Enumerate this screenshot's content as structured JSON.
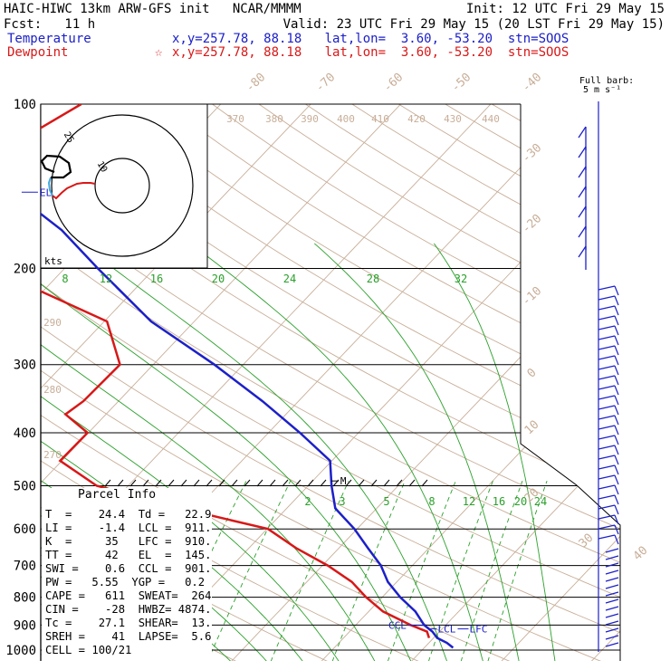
{
  "header": {
    "title": "HAIC-HIWC 13km ARW-GFS init   NCAR/MMMM",
    "init": "Init: 12 UTC Fri 29 May 15",
    "fcst": "Fcst:   11 h",
    "valid": "Valid: 23 UTC Fri 29 May 15 (20 LST Fri 29 May 15)",
    "temperature_label": "Temperature",
    "temperature_info": "x,y=257.78, 88.18   lat,lon=  3.60, -53.20  stn=SOOS",
    "dewpoint_label": "Dewpoint",
    "dewpoint_info": "x,y=257.78, 88.18   lat,lon=  3.60, -53.20  stn=SOOS",
    "dewpoint_marker": "☆"
  },
  "colors": {
    "temperature": "#1c20c8",
    "dewpoint": "#d81818",
    "isotherm": "#c8ae98",
    "mixing_ratio": "#2aa02a",
    "wind_barb": "#1c20c8",
    "axis": "#000000"
  },
  "barb_legend": {
    "line1": "Full barb:",
    "line2": "5 m s⁻¹"
  },
  "hodograph": {
    "unit_label": "kts",
    "ring_labels": [
      "10",
      "25"
    ]
  },
  "parcel_info": {
    "title": "Parcel Info",
    "rows": [
      "T  =    24.4  Td =   22.9",
      "LI =    -1.4  LCL =  911.",
      "K  =     35   LFC =  910.",
      "TT =     42   EL  =  145.",
      "SWI =    0.6  CCL =  901.",
      "PW =   5.55  YGP =   0.2",
      "CAPE =   611  SWEAT=  264",
      "CIN =    -28  HWBZ= 4874.",
      "Tc =    27.1  SHEAR=  13.",
      "SREH =    41  LAPSE=  5.6",
      "CELL = 100/21"
    ]
  },
  "chart_data": {
    "type": "line",
    "chart_kind": "Skew-T log-P sounding",
    "y_axis": {
      "label": "",
      "scale": "log",
      "ylim": [
        1000,
        100
      ],
      "ticks": [
        100,
        200,
        300,
        400,
        500,
        600,
        700,
        800,
        900,
        1000
      ]
    },
    "isotherm_labels": [
      "-80",
      "-70",
      "-60",
      "-50",
      "-40",
      "-30",
      "-20",
      "-10",
      "0",
      "10",
      "20",
      "30",
      "40"
    ],
    "theta_labels": [
      "370",
      "380",
      "390",
      "400",
      "410",
      "420",
      "430",
      "440",
      "290",
      "280",
      "270"
    ],
    "mixing_ratio_labels_upper": [
      "8",
      "12",
      "16",
      "20",
      "24",
      "28",
      "32"
    ],
    "mixing_ratio_labels_lower": [
      "2",
      "3",
      "5",
      "8",
      "12",
      "16",
      "20",
      "24"
    ],
    "series": [
      {
        "name": "Temperature",
        "pressure": [
          990,
          970,
          950,
          925,
          900,
          850,
          800,
          750,
          700,
          650,
          600,
          550,
          500,
          450,
          400,
          350,
          300,
          250,
          200,
          170,
          150,
          130,
          115,
          100
        ],
        "values": [
          23.2,
          22.0,
          20.4,
          19.2,
          17.6,
          15.2,
          12.0,
          9.0,
          6.5,
          3.2,
          -0.3,
          -4.6,
          -7.4,
          -10.2,
          -16.5,
          -24.0,
          -33.2,
          -44.8,
          -56.3,
          -64.4,
          -71.8,
          -76.1,
          -79.5,
          -82.7
        ]
      },
      {
        "name": "Dewpoint",
        "pressure": [
          950,
          925,
          900,
          850,
          800,
          750,
          700,
          650,
          600,
          550,
          500,
          450,
          400,
          370,
          350,
          300,
          250,
          220,
          200,
          180,
          160,
          140,
          120,
          100
        ],
        "values": [
          19.5,
          18.6,
          16.1,
          11.6,
          8.2,
          5.0,
          0.6,
          -4.8,
          -9.9,
          -21.8,
          -33.5,
          -40.2,
          -40.1,
          -44.5,
          -43.9,
          -43.7,
          -49.7,
          -60.3,
          -64.3,
          -67.3,
          -71.0,
          -77.7,
          -79.1,
          -75.5
        ]
      }
    ],
    "levels": [
      {
        "name": "EL",
        "pressure": 145
      },
      {
        "name": "M",
        "pressure": 490
      },
      {
        "name": "CCL",
        "pressure": 901
      },
      {
        "name": "LCL",
        "pressure": 911
      },
      {
        "name": "LFC",
        "pressure": 910
      }
    ],
    "hodograph_ring_speeds": [
      10,
      25
    ]
  }
}
